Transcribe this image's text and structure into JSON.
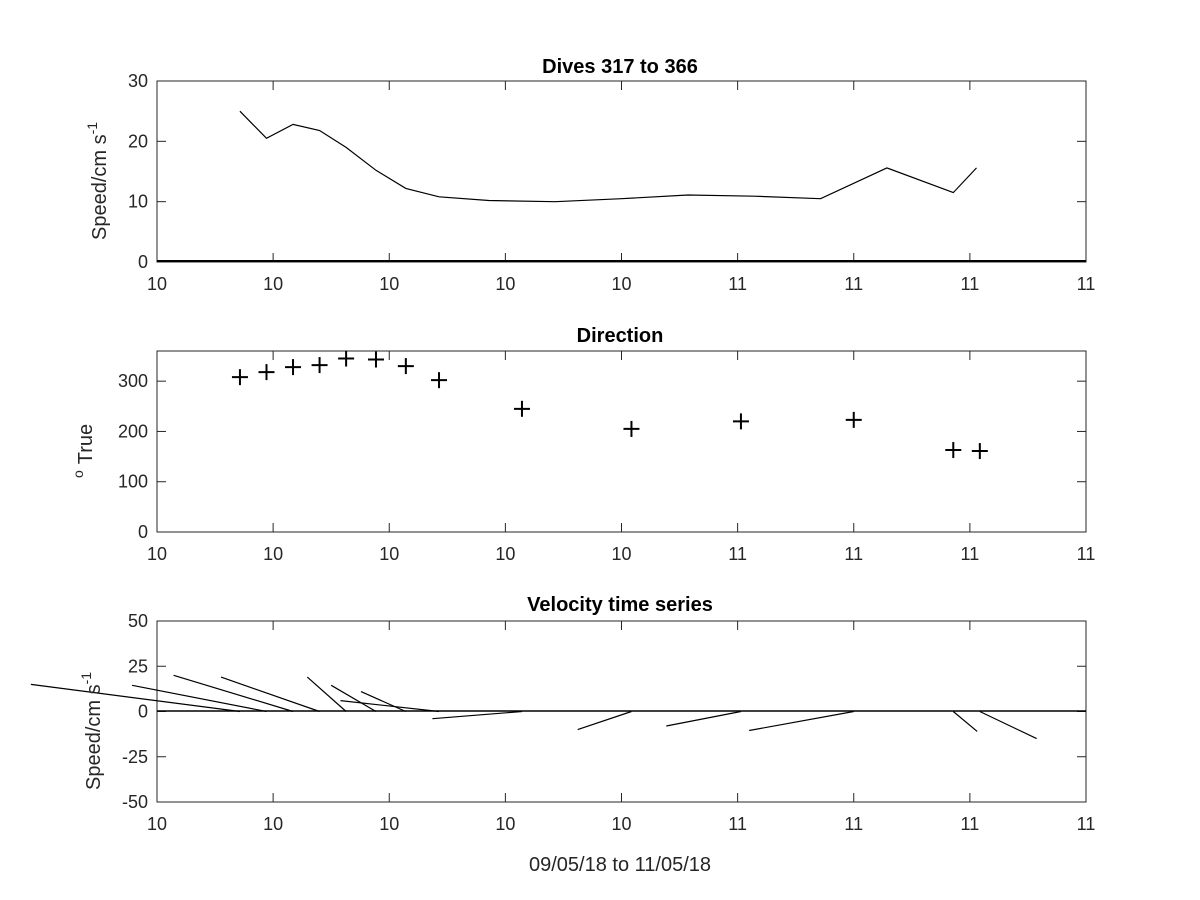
{
  "chart_data": [
    {
      "type": "line",
      "title": "Dives 317 to 366",
      "ylabel": "Speed/cm s",
      "ylabel_superscript": "-1",
      "xlabel": "",
      "xlim": [
        0,
        14
      ],
      "ylim": [
        0,
        30
      ],
      "yticks": [
        "0",
        "10",
        "20",
        "30"
      ],
      "xtick_labels": [
        "10",
        "10",
        "10",
        "10",
        "10",
        "11",
        "11",
        "11",
        "11"
      ],
      "series": [
        {
          "x": [
            1.25,
            1.65,
            2.05,
            2.45,
            2.85,
            3.3,
            3.75,
            4.25,
            5.0,
            6.0,
            7.0,
            8.0,
            9.0,
            10.0,
            11.0,
            12.0,
            12.35
          ],
          "y": [
            25.0,
            20.5,
            22.8,
            21.8,
            19.0,
            15.2,
            12.2,
            10.8,
            10.2,
            10.0,
            10.5,
            11.1,
            10.9,
            10.5,
            15.6,
            11.5,
            15.6
          ]
        }
      ]
    },
    {
      "type": "scatter",
      "title": "Direction",
      "ylabel": "True",
      "ylabel_prefix": "o",
      "xlabel": "",
      "xlim": [
        0,
        14
      ],
      "ylim": [
        0,
        360
      ],
      "yticks": [
        "0",
        "100",
        "200",
        "300"
      ],
      "xtick_labels": [
        "10",
        "10",
        "10",
        "10",
        "10",
        "11",
        "11",
        "11",
        "11"
      ],
      "marker": "+",
      "series": [
        {
          "x": [
            1.25,
            1.65,
            2.05,
            2.45,
            2.85,
            3.3,
            3.75,
            4.25,
            5.5,
            7.15,
            8.8,
            10.5,
            12.0,
            12.4
          ],
          "y": [
            308,
            318,
            328,
            332,
            345,
            343,
            330,
            302,
            245,
            205,
            220,
            223,
            163,
            161
          ]
        }
      ]
    },
    {
      "type": "quiver",
      "title": "Velocity time series",
      "ylabel": "Speed/cm s",
      "ylabel_superscript": "-1",
      "xlabel": "09/05/18 to 11/05/18",
      "xlim": [
        0,
        14
      ],
      "ylim": [
        -50,
        50
      ],
      "yticks": [
        "-50",
        "-25",
        "0",
        "25",
        "50"
      ],
      "xtick_labels": [
        "10",
        "10",
        "10",
        "10",
        "10",
        "11",
        "11",
        "11",
        "11"
      ],
      "sticks": [
        {
          "x": 1.25,
          "u": -7.0,
          "v": 15.0
        },
        {
          "x": 1.65,
          "u": -4.5,
          "v": 14.5
        },
        {
          "x": 2.05,
          "u": -4.0,
          "v": 20.0
        },
        {
          "x": 2.45,
          "u": -3.3,
          "v": 19.0
        },
        {
          "x": 2.85,
          "u": -1.3,
          "v": 19.0
        },
        {
          "x": 3.3,
          "u": -1.5,
          "v": 14.5
        },
        {
          "x": 3.75,
          "u": -1.5,
          "v": 11.0
        },
        {
          "x": 4.25,
          "u": -3.3,
          "v": 6.0
        },
        {
          "x": 5.5,
          "u": -3.0,
          "v": -4.0
        },
        {
          "x": 7.15,
          "u": -1.8,
          "v": -10.0
        },
        {
          "x": 8.8,
          "u": -2.5,
          "v": -8.0
        },
        {
          "x": 10.5,
          "u": -3.5,
          "v": -10.5
        },
        {
          "x": 12.0,
          "u": 0.8,
          "v": -11.0
        },
        {
          "x": 12.4,
          "u": 1.9,
          "v": -15.0
        }
      ]
    }
  ]
}
